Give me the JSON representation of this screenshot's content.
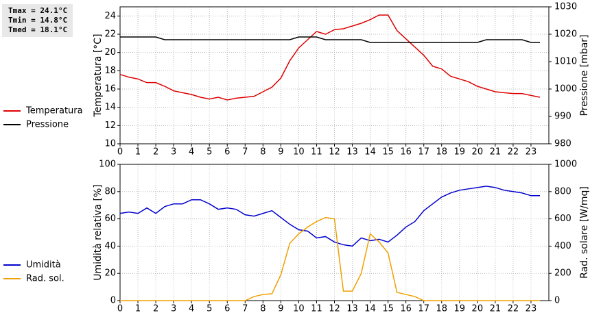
{
  "stats": [
    "Tmax = 24.1°C",
    "Tmin = 14.8°C",
    "Tmed = 18.1°C"
  ],
  "chart_data": [
    {
      "type": "line",
      "ylabel": "Temperatura [°C]",
      "y2label": "Pressione [mbar]",
      "x": [
        0,
        0.5,
        1,
        1.5,
        2,
        2.5,
        3,
        3.5,
        4,
        4.5,
        5,
        5.5,
        6,
        6.5,
        7,
        7.5,
        8,
        8.5,
        9,
        9.5,
        10,
        10.5,
        11,
        11.5,
        12,
        12.5,
        13,
        13.5,
        14,
        14.5,
        15,
        15.5,
        16,
        16.5,
        17,
        17.5,
        18,
        18.5,
        19,
        19.5,
        20,
        20.5,
        21,
        21.5,
        22,
        22.5,
        23,
        23.5
      ],
      "xlim": [
        0,
        24
      ],
      "xticks": [
        0,
        1,
        2,
        3,
        4,
        5,
        6,
        7,
        8,
        9,
        10,
        11,
        12,
        13,
        14,
        15,
        16,
        17,
        18,
        19,
        20,
        21,
        22,
        23
      ],
      "ylim": [
        10,
        25
      ],
      "yticks": [
        10,
        12,
        14,
        16,
        18,
        20,
        22,
        24
      ],
      "y2lim": [
        980,
        1030
      ],
      "y2ticks": [
        980,
        990,
        1000,
        1010,
        1020,
        1030
      ],
      "grid": true,
      "series": [
        {
          "name": "Temperatura",
          "color": "#dd0000",
          "values": [
            17.6,
            17.3,
            17.1,
            16.7,
            16.7,
            16.3,
            15.8,
            15.6,
            15.4,
            15.1,
            14.9,
            15.1,
            14.8,
            15.0,
            15.1,
            15.2,
            15.7,
            16.2,
            17.2,
            19.1,
            20.5,
            21.4,
            22.3,
            22.0,
            22.5,
            22.6,
            22.9,
            23.2,
            23.6,
            24.1,
            24.1,
            22.4,
            21.5,
            20.6,
            19.7,
            18.5,
            18.2,
            17.4,
            17.1,
            16.8,
            16.3,
            16.0,
            15.7,
            15.6,
            15.5,
            15.5,
            15.3,
            15.1
          ]
        },
        {
          "name": "Pressione",
          "color": "#000000",
          "axis": "y2",
          "values": [
            1019,
            1019,
            1019,
            1019,
            1019,
            1018,
            1018,
            1018,
            1018,
            1018,
            1018,
            1018,
            1018,
            1018,
            1018,
            1018,
            1018,
            1018,
            1018,
            1018,
            1019,
            1019,
            1019,
            1018,
            1018,
            1018,
            1018,
            1018,
            1017,
            1017,
            1017,
            1017,
            1017,
            1017,
            1017,
            1017,
            1017,
            1017,
            1017,
            1017,
            1017,
            1018,
            1018,
            1018,
            1018,
            1018,
            1017,
            1017
          ]
        }
      ]
    },
    {
      "type": "line",
      "ylabel": "Umidità relativa [%]",
      "y2label": "Rad. solare [W/mq]",
      "x": [
        0,
        0.5,
        1,
        1.5,
        2,
        2.5,
        3,
        3.5,
        4,
        4.5,
        5,
        5.5,
        6,
        6.5,
        7,
        7.5,
        8,
        8.5,
        9,
        9.5,
        10,
        10.5,
        11,
        11.5,
        12,
        12.5,
        13,
        13.5,
        14,
        14.5,
        15,
        15.5,
        16,
        16.5,
        17,
        17.5,
        18,
        18.5,
        19,
        19.5,
        20,
        20.5,
        21,
        21.5,
        22,
        22.5,
        23,
        23.5
      ],
      "xlim": [
        0,
        24
      ],
      "xticks": [
        0,
        1,
        2,
        3,
        4,
        5,
        6,
        7,
        8,
        9,
        10,
        11,
        12,
        13,
        14,
        15,
        16,
        17,
        18,
        19,
        20,
        21,
        22,
        23
      ],
      "ylim": [
        0,
        100
      ],
      "yticks": [
        0,
        20,
        40,
        60,
        80,
        100
      ],
      "y2lim": [
        0,
        1000
      ],
      "y2ticks": [
        0,
        200,
        400,
        600,
        800,
        1000
      ],
      "grid": true,
      "series": [
        {
          "name": "Umidità",
          "color": "#0000cc",
          "values": [
            64,
            65,
            64,
            68,
            64,
            69,
            71,
            71,
            74,
            74,
            71,
            67,
            68,
            67,
            63,
            62,
            64,
            66,
            61,
            56,
            52,
            51,
            46,
            47,
            43,
            41,
            40,
            46,
            44,
            45,
            43,
            48,
            54,
            58,
            66,
            71,
            76,
            79,
            81,
            82,
            83,
            84,
            83,
            81,
            80,
            79,
            77,
            77
          ]
        },
        {
          "name": "Rad. sol.",
          "color": "#f0a000",
          "axis": "y2",
          "values": [
            0,
            0,
            0,
            0,
            0,
            0,
            0,
            0,
            0,
            0,
            0,
            0,
            0,
            0,
            0,
            30,
            45,
            50,
            190,
            420,
            490,
            540,
            580,
            610,
            600,
            70,
            70,
            200,
            490,
            430,
            350,
            60,
            45,
            30,
            0,
            0,
            0,
            0,
            0,
            0,
            0,
            0,
            0,
            0,
            0,
            0,
            0,
            0
          ]
        }
      ]
    }
  ]
}
